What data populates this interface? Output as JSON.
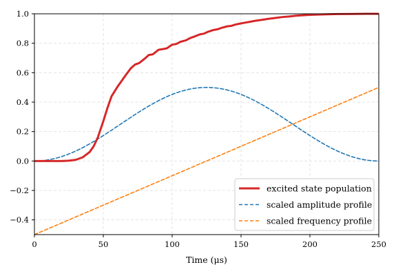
{
  "chart_data": {
    "type": "line",
    "xlabel": "Time (μs)",
    "ylabel": "",
    "xlim": [
      0,
      250
    ],
    "ylim": [
      -0.5,
      1.0
    ],
    "grid": true,
    "legend_placement": "lower-right",
    "xticks": [
      0,
      50,
      100,
      150,
      200,
      250
    ],
    "yticks": [
      -0.4,
      -0.2,
      0.0,
      0.2,
      0.4,
      0.6,
      0.8,
      1.0
    ],
    "xtick_labels": [
      "0",
      "50",
      "100",
      "150",
      "200",
      "250"
    ],
    "ytick_labels": [
      "−0.4",
      "−0.2",
      "0.0",
      "0.2",
      "0.4",
      "0.6",
      "0.8",
      "1.0"
    ],
    "series": [
      {
        "name": "excited state population",
        "color": "#d62728",
        "style": "solid",
        "x": [
          0,
          10,
          20,
          25,
          30,
          35,
          40,
          43,
          46,
          50,
          53,
          56,
          60,
          63,
          66,
          70,
          73,
          76,
          80,
          83,
          86,
          90,
          93,
          96,
          100,
          103,
          106,
          110,
          113,
          116,
          120,
          123,
          126,
          130,
          133,
          136,
          140,
          143,
          146,
          150,
          153,
          156,
          160,
          163,
          166,
          170,
          175,
          180,
          185,
          190,
          195,
          200,
          210,
          220,
          230,
          240,
          250
        ],
        "values": [
          0.0,
          0.0,
          0.0,
          0.002,
          0.008,
          0.025,
          0.06,
          0.1,
          0.16,
          0.27,
          0.36,
          0.44,
          0.5,
          0.54,
          0.58,
          0.63,
          0.655,
          0.665,
          0.695,
          0.72,
          0.725,
          0.755,
          0.76,
          0.765,
          0.79,
          0.795,
          0.81,
          0.82,
          0.835,
          0.845,
          0.86,
          0.865,
          0.878,
          0.89,
          0.895,
          0.905,
          0.915,
          0.918,
          0.927,
          0.935,
          0.94,
          0.945,
          0.952,
          0.956,
          0.96,
          0.966,
          0.972,
          0.978,
          0.982,
          0.987,
          0.99,
          0.993,
          0.996,
          0.998,
          0.999,
          1.0,
          1.0
        ]
      },
      {
        "name": "scaled amplitude profile",
        "color": "#1f77b4",
        "style": "dashed",
        "function": "0.5*sin^2(pi*t/250)",
        "x": [
          0,
          12.5,
          25,
          37.5,
          50,
          62.5,
          75,
          87.5,
          100,
          112.5,
          125,
          137.5,
          150,
          162.5,
          175,
          187.5,
          200,
          212.5,
          225,
          237.5,
          250
        ],
        "values": [
          0.0,
          0.012,
          0.048,
          0.103,
          0.173,
          0.25,
          0.327,
          0.397,
          0.452,
          0.488,
          0.5,
          0.488,
          0.452,
          0.397,
          0.327,
          0.25,
          0.173,
          0.103,
          0.048,
          0.012,
          0.0
        ]
      },
      {
        "name": "scaled frequency profile",
        "color": "#ff7f0e",
        "style": "dashed",
        "x": [
          0,
          250
        ],
        "values": [
          -0.5,
          0.5
        ]
      }
    ]
  }
}
